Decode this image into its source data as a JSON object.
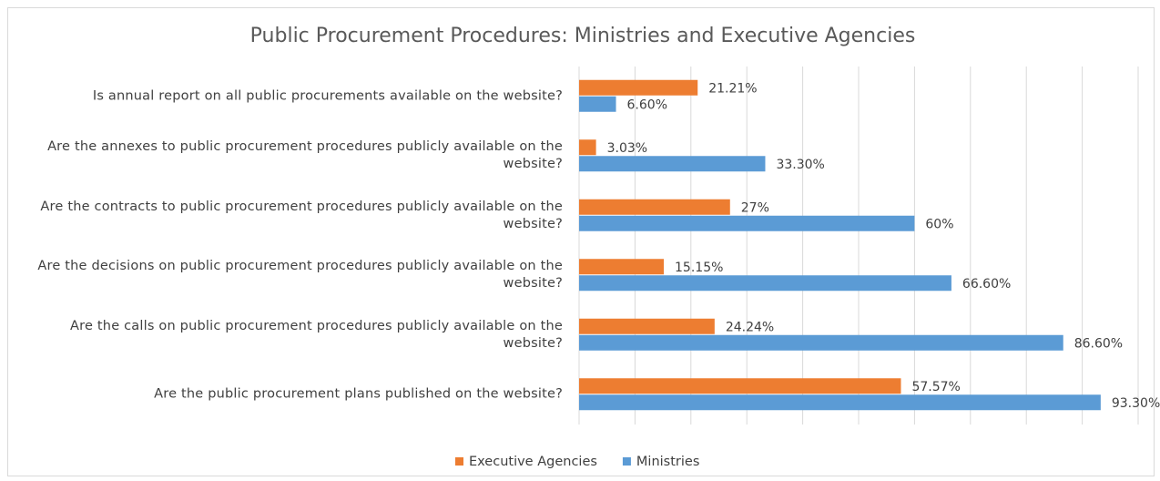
{
  "chart_data": {
    "type": "hbar",
    "title": "Public Procurement Procedures: Ministries and Executive Agencies",
    "categories": [
      "Is annual report on all public procurements available on the website?",
      "Are the annexes to public procurement procedures publicly available on the website?",
      "Are the contracts to public procurement procedures publicly available on the website?",
      "Are the decisions on public procurement procedures publicly available on the website?",
      "Are the calls on public procurement procedures publicly available on the website?",
      "Are the public procurement plans published on the website?"
    ],
    "series": [
      {
        "name": "Executive Agencies",
        "color": "#ED7D31",
        "values": [
          21.21,
          3.03,
          27,
          15.15,
          24.24,
          57.57
        ],
        "value_labels": [
          "21.21%",
          "3.03%",
          "27%",
          "15.15%",
          "24.24%",
          "57.57%"
        ]
      },
      {
        "name": "Ministries",
        "color": "#5B9BD5",
        "values": [
          6.6,
          33.3,
          60,
          66.6,
          86.6,
          93.3
        ],
        "value_labels": [
          "6.60%",
          "33.30%",
          "60%",
          "66.60%",
          "86.60%",
          "93.30%"
        ]
      }
    ],
    "xlim": [
      0,
      100
    ],
    "xticks": [
      0,
      10,
      20,
      30,
      40,
      50,
      60,
      70,
      80,
      90,
      100
    ],
    "grid": true,
    "legend": "bottom"
  }
}
